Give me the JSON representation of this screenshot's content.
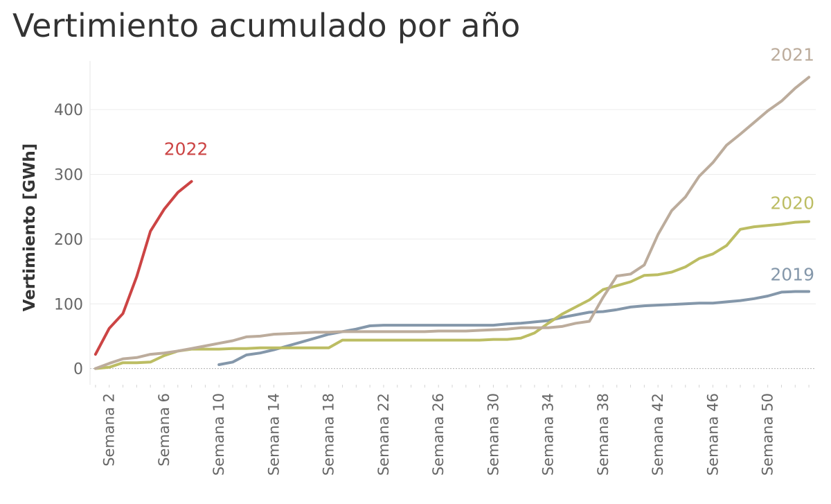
{
  "chart_data": {
    "type": "line",
    "title": "Vertimiento acumulado por año",
    "ylabel": "Vertimiento [GWh]",
    "xlabel": "",
    "ylim": [
      -25,
      475
    ],
    "xlim": [
      0.6,
      53.5
    ],
    "yticks": [
      0,
      100,
      200,
      300,
      400
    ],
    "xticks": [
      {
        "week": 2,
        "label": "Semana 2"
      },
      {
        "week": 6,
        "label": "Semana 6"
      },
      {
        "week": 10,
        "label": "Semana 10"
      },
      {
        "week": 14,
        "label": "Semana 14"
      },
      {
        "week": 18,
        "label": "Semana 18"
      },
      {
        "week": 22,
        "label": "Semana 22"
      },
      {
        "week": 26,
        "label": "Semana 26"
      },
      {
        "week": 30,
        "label": "Semana 30"
      },
      {
        "week": 34,
        "label": "Semana 34"
      },
      {
        "week": 38,
        "label": "Semana 38"
      },
      {
        "week": 42,
        "label": "Semana 42"
      },
      {
        "week": 46,
        "label": "Semana 46"
      },
      {
        "week": 50,
        "label": "Semana 50"
      }
    ],
    "grid": true,
    "legend": "direct labels at line ends",
    "series": [
      {
        "name": "2019",
        "color": "#8497aa",
        "x": [
          10,
          11,
          12,
          13,
          14,
          15,
          16,
          17,
          18,
          19,
          20,
          21,
          22,
          23,
          24,
          25,
          26,
          27,
          28,
          29,
          30,
          31,
          32,
          33,
          34,
          35,
          36,
          37,
          38,
          39,
          40,
          41,
          42,
          43,
          44,
          45,
          46,
          47,
          48,
          49,
          50,
          51,
          52,
          53
        ],
        "y": [
          6,
          10,
          21,
          24,
          29,
          35,
          41,
          47,
          53,
          57,
          61,
          66,
          67,
          67,
          67,
          67,
          67,
          67,
          67,
          67,
          67,
          69,
          70,
          72,
          74,
          79,
          83,
          87,
          88,
          91,
          95,
          97,
          98,
          99,
          100,
          101,
          101,
          103,
          105,
          108,
          112,
          118,
          119,
          119
        ]
      },
      {
        "name": "2020",
        "color": "#bcbd63",
        "x": [
          1,
          2,
          3,
          4,
          5,
          6,
          7,
          8,
          9,
          10,
          11,
          12,
          13,
          14,
          15,
          16,
          17,
          18,
          19,
          20,
          21,
          22,
          23,
          24,
          25,
          26,
          27,
          28,
          29,
          30,
          31,
          32,
          33,
          34,
          35,
          36,
          37,
          38,
          39,
          40,
          41,
          42,
          43,
          44,
          45,
          46,
          47,
          48,
          49,
          50,
          51,
          52,
          53
        ],
        "y": [
          0,
          2,
          9,
          9,
          10,
          20,
          27,
          30,
          30,
          30,
          31,
          31,
          32,
          32,
          32,
          32,
          32,
          32,
          44,
          44,
          44,
          44,
          44,
          44,
          44,
          44,
          44,
          44,
          44,
          45,
          45,
          47,
          55,
          70,
          84,
          95,
          106,
          122,
          128,
          134,
          144,
          145,
          149,
          157,
          170,
          177,
          190,
          215,
          219,
          221,
          223,
          226,
          227
        ]
      },
      {
        "name": "2021",
        "color": "#bcac9c",
        "x": [
          1,
          2,
          3,
          4,
          5,
          6,
          7,
          8,
          9,
          10,
          11,
          12,
          13,
          14,
          15,
          16,
          17,
          18,
          19,
          20,
          21,
          22,
          23,
          24,
          25,
          26,
          27,
          28,
          29,
          30,
          31,
          32,
          33,
          34,
          35,
          36,
          37,
          38,
          39,
          40,
          41,
          42,
          43,
          44,
          45,
          46,
          47,
          48,
          49,
          50,
          51,
          52,
          53
        ],
        "y": [
          0,
          8,
          15,
          17,
          22,
          24,
          27,
          31,
          35,
          39,
          43,
          49,
          50,
          53,
          54,
          55,
          56,
          56,
          57,
          57,
          57,
          57,
          57,
          57,
          57,
          58,
          58,
          58,
          59,
          60,
          61,
          63,
          63,
          63,
          65,
          70,
          73,
          110,
          143,
          146,
          160,
          207,
          244,
          265,
          297,
          318,
          345,
          362,
          380,
          398,
          413,
          433,
          450
        ]
      },
      {
        "name": "2022",
        "color": "#cc4444",
        "x": [
          1,
          2,
          3,
          4,
          5,
          6,
          7,
          8
        ],
        "y": [
          22,
          62,
          85,
          142,
          212,
          246,
          272,
          289
        ]
      }
    ]
  }
}
